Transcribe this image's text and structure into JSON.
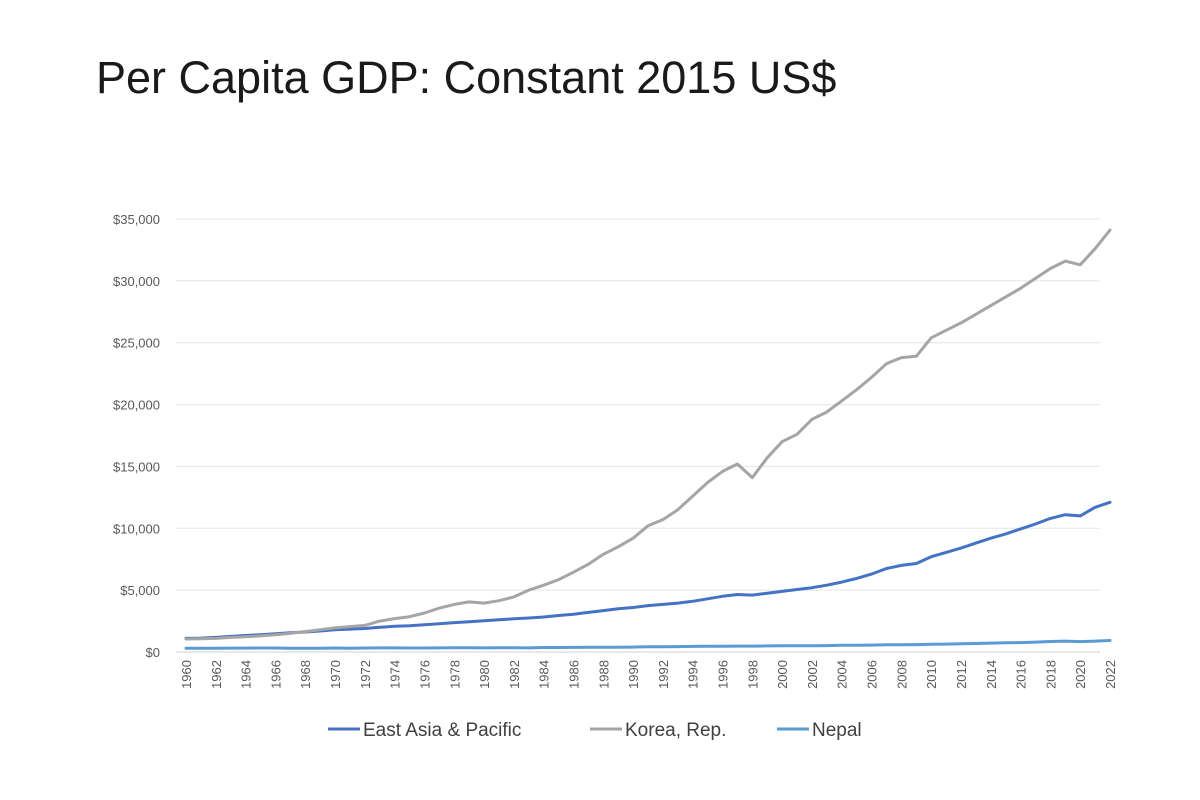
{
  "page": {
    "title": "Per Capita GDP: Constant 2015 US$"
  },
  "chart_data": {
    "type": "line",
    "title": "Per Capita GDP: Constant 2015 US$",
    "xlabel": "",
    "ylabel": "",
    "ylim": [
      0,
      35000
    ],
    "yticks": [
      {
        "value": 0,
        "label": "$0"
      },
      {
        "value": 5000,
        "label": "$5,000"
      },
      {
        "value": 10000,
        "label": "$10,000"
      },
      {
        "value": 15000,
        "label": "$15,000"
      },
      {
        "value": 20000,
        "label": "$20,000"
      },
      {
        "value": 25000,
        "label": "$25,000"
      },
      {
        "value": 30000,
        "label": "$30,000"
      },
      {
        "value": 35000,
        "label": "$35,000"
      }
    ],
    "xtick_labels": [
      "1960",
      "1962",
      "1964",
      "1966",
      "1968",
      "1970",
      "1972",
      "1974",
      "1976",
      "1978",
      "1980",
      "1982",
      "1984",
      "1986",
      "1988",
      "1990",
      "1992",
      "1994",
      "1996",
      "1998",
      "2000",
      "2002",
      "2004",
      "2006",
      "2008",
      "2010",
      "2012",
      "2014",
      "2016",
      "2018",
      "2020",
      "2022"
    ],
    "x": [
      1960,
      1961,
      1962,
      1963,
      1964,
      1965,
      1966,
      1967,
      1968,
      1969,
      1970,
      1971,
      1972,
      1973,
      1974,
      1975,
      1976,
      1977,
      1978,
      1979,
      1980,
      1981,
      1982,
      1983,
      1984,
      1985,
      1986,
      1987,
      1988,
      1989,
      1990,
      1991,
      1992,
      1993,
      1994,
      1995,
      1996,
      1997,
      1998,
      1999,
      2000,
      2001,
      2002,
      2003,
      2004,
      2005,
      2006,
      2007,
      2008,
      2009,
      2010,
      2011,
      2012,
      2013,
      2014,
      2015,
      2016,
      2017,
      2018,
      2019,
      2020,
      2021,
      2022
    ],
    "grid": true,
    "legend_position": "bottom",
    "series": [
      {
        "name": "East Asia & Pacific",
        "color": "#4472c4",
        "values": [
          1100,
          1120,
          1180,
          1260,
          1330,
          1400,
          1480,
          1550,
          1620,
          1700,
          1800,
          1850,
          1900,
          2000,
          2080,
          2120,
          2200,
          2280,
          2380,
          2450,
          2520,
          2600,
          2680,
          2750,
          2830,
          2950,
          3050,
          3200,
          3350,
          3500,
          3600,
          3750,
          3850,
          3950,
          4100,
          4300,
          4500,
          4650,
          4600,
          4750,
          4900,
          5050,
          5200,
          5400,
          5650,
          5950,
          6300,
          6750,
          7000,
          7150,
          7700,
          8050,
          8400,
          8800,
          9200,
          9550,
          9950,
          10350,
          10800,
          11100,
          11000,
          11700,
          12100
        ]
      },
      {
        "name": "Korea, Rep.",
        "color": "#a5a5a5",
        "values": [
          1050,
          1070,
          1100,
          1180,
          1240,
          1300,
          1400,
          1500,
          1650,
          1800,
          1950,
          2050,
          2150,
          2500,
          2700,
          2850,
          3150,
          3550,
          3850,
          4050,
          3950,
          4150,
          4450,
          5000,
          5400,
          5850,
          6450,
          7100,
          7900,
          8500,
          9200,
          10200,
          10700,
          11500,
          12600,
          13700,
          14600,
          15200,
          14100,
          15700,
          17000,
          17600,
          18800,
          19400,
          20300,
          21200,
          22200,
          23300,
          23800,
          23900,
          25400,
          26000,
          26600,
          27300,
          28000,
          28700,
          29400,
          30200,
          31000,
          31600,
          31300,
          32600,
          34100
        ]
      },
      {
        "name": "Nepal",
        "color": "#5b9bd5",
        "values": [
          300,
          305,
          310,
          315,
          315,
          320,
          320,
          300,
          310,
          310,
          320,
          310,
          320,
          330,
          330,
          320,
          320,
          330,
          340,
          340,
          330,
          340,
          350,
          330,
          360,
          360,
          370,
          380,
          380,
          390,
          400,
          420,
          430,
          440,
          450,
          460,
          470,
          480,
          480,
          490,
          500,
          510,
          510,
          520,
          540,
          550,
          560,
          580,
          590,
          600,
          620,
          640,
          660,
          690,
          720,
          750,
          760,
          800,
          850,
          880,
          840,
          880,
          930
        ]
      }
    ]
  }
}
